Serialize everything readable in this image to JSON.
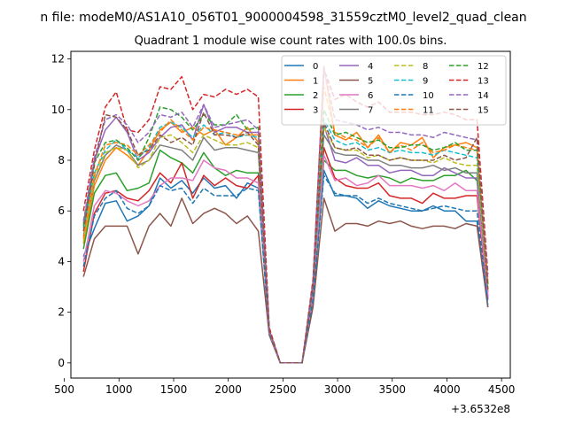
{
  "suptitle": "n file: modeM0/AS1A10_056T01_9000004598_31559cztM0_level2_quad_clean",
  "chart_data": {
    "type": "line",
    "title": "Quadrant 1 module wise count rates with 100.0s bins.",
    "xlabel": "",
    "ylabel": "",
    "x_offset_label": "+3.6532e8",
    "xlim": [
      560,
      4580
    ],
    "ylim": [
      -0.6,
      12.3
    ],
    "xticks": [
      500,
      1000,
      1500,
      2000,
      2500,
      3000,
      3500,
      4000,
      4500
    ],
    "yticks": [
      0,
      2,
      4,
      6,
      8,
      10,
      12
    ],
    "legend_position": "top-right",
    "x": [
      675,
      775,
      875,
      975,
      1075,
      1175,
      1275,
      1375,
      1475,
      1575,
      1675,
      1775,
      1875,
      1975,
      2075,
      2175,
      2275,
      2375,
      2475,
      2575,
      2675,
      2775,
      2875,
      2975,
      3075,
      3175,
      3275,
      3375,
      3475,
      3575,
      3675,
      3775,
      3875,
      3975,
      4075,
      4175,
      4275,
      4375
    ],
    "series": [
      {
        "name": "0",
        "color": "#1f77b4",
        "dash": "solid",
        "values": [
          4.2,
          5.3,
          6.3,
          6.4,
          5.6,
          5.8,
          6.2,
          7.3,
          6.9,
          7.2,
          6.7,
          7.3,
          6.9,
          7.0,
          6.5,
          7.1,
          6.9,
          1.2,
          0,
          0,
          0,
          2.5,
          7.6,
          6.6,
          6.6,
          6.5,
          6.1,
          6.4,
          6.2,
          6.1,
          6.0,
          6.0,
          6.2,
          6.0,
          6.0,
          5.6,
          5.6,
          2.2
        ]
      },
      {
        "name": "1",
        "color": "#ff7f0e",
        "dash": "solid",
        "values": [
          4.7,
          7.0,
          8.0,
          8.5,
          8.2,
          7.8,
          8.4,
          9.2,
          9.5,
          9.1,
          9.3,
          9.0,
          9.2,
          8.6,
          8.9,
          9.3,
          8.7,
          1.3,
          0,
          0,
          0,
          3.0,
          11.7,
          9.0,
          8.8,
          9.1,
          8.5,
          9.0,
          8.3,
          8.7,
          8.6,
          8.9,
          8.1,
          8.5,
          8.6,
          8.7,
          8.5,
          3.2
        ]
      },
      {
        "name": "2",
        "color": "#2ca02c",
        "dash": "solid",
        "values": [
          4.5,
          6.7,
          7.4,
          7.5,
          6.8,
          6.9,
          7.1,
          8.4,
          8.1,
          7.9,
          7.5,
          8.3,
          7.7,
          7.4,
          7.6,
          7.5,
          7.5,
          1.2,
          0,
          0,
          0,
          2.7,
          8.0,
          7.6,
          7.6,
          7.4,
          7.3,
          7.4,
          7.3,
          7.1,
          7.3,
          7.2,
          7.2,
          7.4,
          7.4,
          7.6,
          7.2,
          2.8
        ]
      },
      {
        "name": "3",
        "color": "#d62728",
        "dash": "solid",
        "values": [
          3.6,
          5.9,
          6.7,
          6.8,
          6.5,
          6.4,
          6.8,
          7.5,
          7.1,
          7.9,
          6.5,
          7.4,
          7.0,
          7.3,
          7.0,
          6.9,
          7.4,
          1.2,
          0,
          0,
          0,
          2.6,
          8.5,
          7.3,
          7.0,
          6.9,
          6.9,
          7.1,
          6.6,
          6.5,
          6.5,
          6.3,
          6.7,
          6.5,
          6.5,
          6.6,
          6.6,
          2.5
        ]
      },
      {
        "name": "4",
        "color": "#9467bd",
        "dash": "solid",
        "values": [
          5.5,
          8.0,
          9.2,
          9.7,
          9.1,
          8.0,
          8.3,
          8.9,
          9.3,
          9.4,
          8.8,
          10.2,
          9.1,
          9.3,
          9.3,
          9.1,
          9.1,
          1.3,
          0,
          0,
          0,
          3.0,
          9.4,
          8.0,
          7.9,
          8.1,
          7.8,
          7.8,
          7.5,
          7.6,
          7.6,
          7.4,
          7.4,
          7.7,
          7.5,
          7.3,
          7.3,
          2.6
        ]
      },
      {
        "name": "5",
        "color": "#8c564b",
        "dash": "solid",
        "values": [
          3.4,
          4.9,
          5.4,
          5.4,
          5.4,
          4.3,
          5.4,
          5.9,
          5.4,
          6.5,
          5.5,
          5.9,
          6.1,
          5.9,
          5.5,
          5.8,
          5.2,
          1.1,
          0,
          0,
          0,
          2.2,
          6.5,
          5.2,
          5.5,
          5.5,
          5.4,
          5.6,
          5.5,
          5.6,
          5.4,
          5.3,
          5.4,
          5.4,
          5.3,
          5.5,
          5.4,
          2.2
        ]
      },
      {
        "name": "6",
        "color": "#e377c2",
        "dash": "solid",
        "values": [
          4.0,
          6.2,
          6.8,
          6.7,
          6.4,
          6.2,
          6.4,
          7.0,
          7.3,
          7.3,
          7.2,
          8.0,
          7.7,
          7.6,
          7.3,
          7.3,
          7.1,
          1.2,
          0,
          0,
          0,
          2.6,
          8.2,
          7.2,
          7.3,
          7.0,
          7.1,
          7.4,
          7.0,
          7.0,
          7.0,
          6.9,
          7.0,
          6.8,
          7.1,
          6.8,
          6.8,
          2.7
        ]
      },
      {
        "name": "7",
        "color": "#7f7f7f",
        "dash": "solid",
        "values": [
          5.0,
          7.2,
          8.2,
          8.6,
          8.4,
          7.8,
          8.0,
          8.6,
          8.5,
          8.4,
          8.0,
          8.9,
          8.4,
          8.5,
          8.5,
          8.4,
          8.3,
          1.3,
          0,
          0,
          0,
          3.0,
          9.0,
          8.3,
          8.2,
          8.2,
          8.0,
          8.0,
          7.8,
          7.8,
          7.7,
          7.7,
          7.8,
          7.6,
          7.7,
          7.5,
          7.5,
          2.9
        ]
      },
      {
        "name": "8",
        "color": "#bcbd22",
        "dash": "dashed",
        "values": [
          4.8,
          7.3,
          8.3,
          8.5,
          8.4,
          7.7,
          8.0,
          8.9,
          9.0,
          8.7,
          8.3,
          9.0,
          8.8,
          8.6,
          8.6,
          8.7,
          8.5,
          1.3,
          0,
          0,
          0,
          3.0,
          9.3,
          8.5,
          8.4,
          8.4,
          8.1,
          8.2,
          8.0,
          8.1,
          8.0,
          8.0,
          7.9,
          8.1,
          7.9,
          7.8,
          7.8,
          3.0
        ]
      },
      {
        "name": "9",
        "color": "#17becf",
        "dash": "dashed",
        "values": [
          5.3,
          7.5,
          8.4,
          8.8,
          8.4,
          8.1,
          8.5,
          9.3,
          9.5,
          9.3,
          8.9,
          9.4,
          9.0,
          9.1,
          8.9,
          9.0,
          8.9,
          1.3,
          0,
          0,
          0,
          3.0,
          9.6,
          8.8,
          8.6,
          8.7,
          8.4,
          8.5,
          8.3,
          8.4,
          8.3,
          8.3,
          8.2,
          8.4,
          8.3,
          8.2,
          8.1,
          3.1
        ]
      },
      {
        "name": "10",
        "color": "#1f77b4",
        "dash": "dashed",
        "values": [
          3.8,
          5.8,
          6.5,
          6.8,
          6.1,
          5.9,
          6.2,
          7.0,
          6.8,
          6.9,
          6.3,
          6.9,
          6.6,
          6.6,
          6.6,
          6.9,
          6.8,
          1.2,
          0,
          0,
          0,
          2.5,
          7.4,
          6.7,
          6.6,
          6.6,
          6.3,
          6.5,
          6.3,
          6.2,
          6.1,
          6.0,
          6.1,
          6.2,
          6.1,
          6.0,
          6.0,
          2.3
        ]
      },
      {
        "name": "11",
        "color": "#ff7f0e",
        "dash": "dashed",
        "values": [
          4.9,
          7.4,
          8.6,
          8.7,
          8.6,
          8.2,
          8.6,
          9.1,
          9.6,
          9.2,
          8.8,
          9.3,
          9.2,
          9.1,
          9.0,
          9.0,
          9.0,
          1.3,
          0,
          0,
          0,
          3.1,
          10.9,
          9.1,
          8.9,
          8.8,
          8.5,
          8.9,
          8.3,
          8.6,
          8.4,
          8.7,
          8.3,
          8.4,
          8.6,
          8.5,
          8.4,
          3.1
        ]
      },
      {
        "name": "12",
        "color": "#2ca02c",
        "dash": "dashed",
        "values": [
          5.4,
          7.9,
          8.7,
          8.8,
          8.5,
          8.0,
          8.9,
          10.1,
          10.0,
          9.7,
          9.2,
          9.8,
          9.4,
          9.4,
          9.8,
          9.2,
          9.3,
          1.3,
          0,
          0,
          0,
          3.1,
          10.0,
          9.0,
          9.1,
          8.9,
          8.7,
          8.8,
          8.5,
          8.5,
          8.6,
          8.6,
          8.4,
          8.5,
          8.7,
          8.4,
          8.4,
          3.1
        ]
      },
      {
        "name": "13",
        "color": "#d62728",
        "dash": "dashed",
        "values": [
          6.0,
          8.4,
          10.1,
          10.7,
          9.2,
          9.1,
          9.6,
          10.9,
          10.8,
          11.3,
          10.0,
          10.6,
          10.5,
          10.8,
          10.6,
          10.8,
          10.5,
          1.4,
          0,
          0,
          0,
          3.3,
          11.6,
          10.4,
          10.6,
          10.3,
          10.1,
          10.3,
          9.9,
          9.9,
          9.9,
          9.8,
          9.8,
          9.9,
          9.8,
          9.6,
          9.6,
          3.5
        ]
      },
      {
        "name": "14",
        "color": "#9467bd",
        "dash": "dashed",
        "values": [
          5.6,
          8.1,
          9.6,
          9.8,
          9.4,
          8.7,
          9.1,
          9.8,
          9.7,
          9.9,
          9.3,
          10.2,
          9.3,
          9.4,
          9.5,
          9.6,
          9.2,
          1.3,
          0,
          0,
          0,
          3.2,
          11.7,
          9.6,
          9.5,
          9.4,
          9.2,
          9.3,
          9.1,
          9.1,
          9.0,
          9.0,
          8.9,
          9.1,
          9.0,
          8.9,
          8.8,
          3.3
        ]
      },
      {
        "name": "15",
        "color": "#8c564b",
        "dash": "dashed",
        "values": [
          5.2,
          7.8,
          9.8,
          9.7,
          9.2,
          8.2,
          8.4,
          9.0,
          8.7,
          8.9,
          8.6,
          9.9,
          9.0,
          9.0,
          8.9,
          9.1,
          8.6,
          1.3,
          0,
          0,
          0,
          3.0,
          9.5,
          8.5,
          8.4,
          8.5,
          8.2,
          8.2,
          8.0,
          8.1,
          8.0,
          8.0,
          8.0,
          8.2,
          8.0,
          8.1,
          8.9,
          2.9
        ]
      }
    ]
  }
}
